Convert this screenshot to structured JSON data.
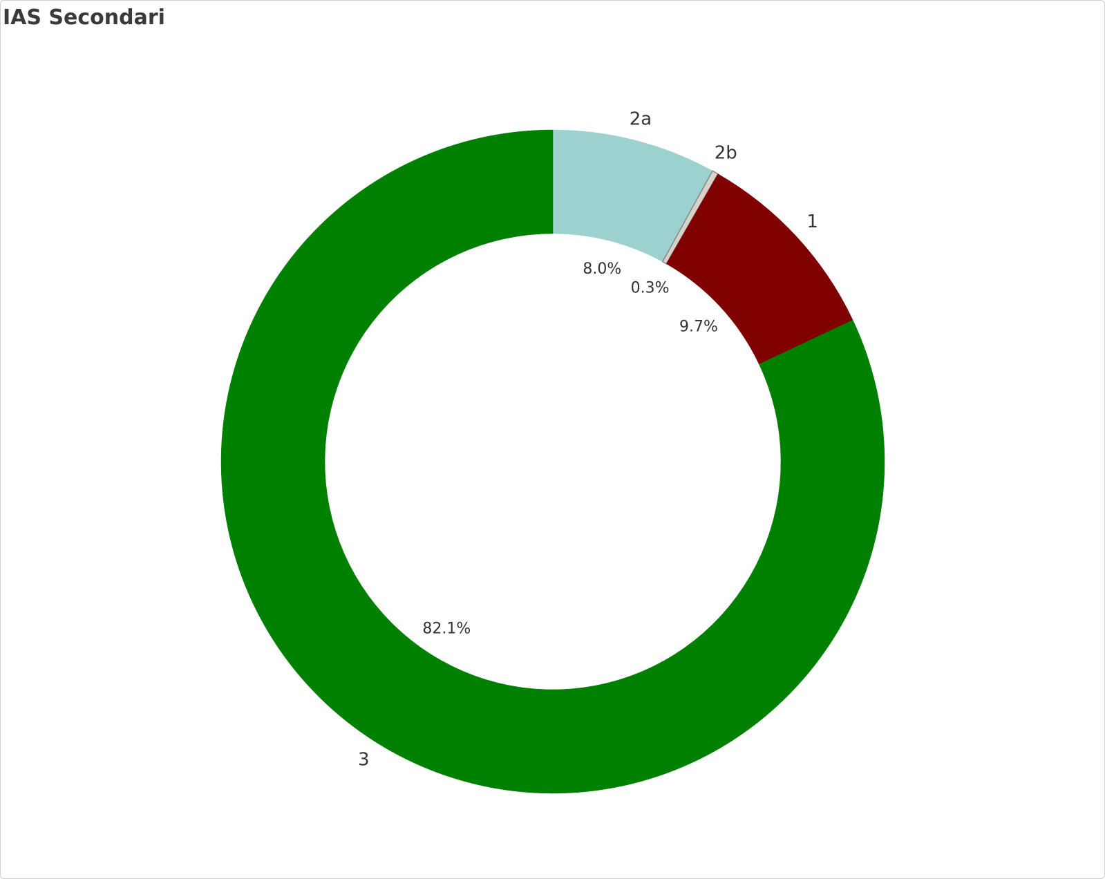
{
  "chart_data": {
    "type": "donut",
    "title": "IAS Secondari",
    "categories": [
      "2a",
      "2b",
      "1",
      "3"
    ],
    "values": [
      8.0,
      0.3,
      9.7,
      82.1
    ],
    "value_labels": [
      "8.0%",
      "0.3%",
      "9.7%",
      "82.1%"
    ],
    "colors": [
      "#9dd1cf",
      "#d8d2cb",
      "#800000",
      "#008000"
    ]
  }
}
